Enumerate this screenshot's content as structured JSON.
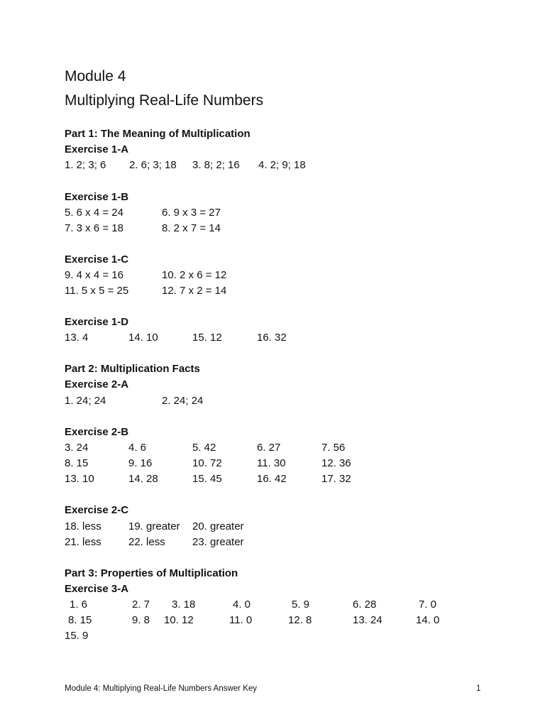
{
  "title": "Module 4",
  "subtitle": "Multiplying Real-Life Numbers",
  "sections": [
    {
      "heading": "Part 1:  The Meaning of Multiplication"
    },
    {
      "exercise": "Exercise 1-A",
      "rows": [
        [
          "1. 2; 3; 6",
          "2. 6; 3; 18",
          "3. 8; 2; 16",
          "4. 2; 9; 18"
        ]
      ]
    },
    {
      "exercise": "Exercise 1-B",
      "rows": [
        [
          "5. 6 x 4 = 24",
          "6. 9 x 3 = 27"
        ],
        [
          "7. 3 x 6 = 18",
          "8. 2 x 7 = 14"
        ]
      ]
    },
    {
      "exercise": "Exercise 1-C",
      "rows": [
        [
          "9. 4 x 4 = 16",
          "10. 2 x 6 = 12"
        ],
        [
          "11. 5 x 5 = 25",
          "12. 7 x 2 = 14"
        ]
      ]
    },
    {
      "exercise": "Exercise 1-D",
      "rows": [
        [
          "13. 4",
          "14. 10",
          "15. 12",
          "16. 32"
        ]
      ]
    },
    {
      "heading": "Part 2: Multiplication Facts"
    },
    {
      "exercise": "Exercise 2-A",
      "rows": [
        [
          "1. 24; 24",
          "2. 24; 24"
        ]
      ]
    },
    {
      "exercise": "Exercise 2-B",
      "rows": [
        [
          "3. 24",
          "4. 6",
          "5. 42",
          "6. 27",
          "7. 56"
        ],
        [
          "8. 15",
          "9. 16",
          "10. 72",
          "11. 30",
          "12. 36"
        ],
        [
          "13. 10",
          "14. 28",
          "15. 45",
          "16. 42",
          "17. 32"
        ]
      ]
    },
    {
      "exercise": "Exercise 2-C",
      "rows": [
        [
          "18. less",
          "19. greater",
          "20. greater"
        ],
        [
          "21. less",
          "22. less",
          "23. greater"
        ]
      ]
    },
    {
      "heading": "Part 3:  Properties of Multiplication"
    },
    {
      "exercise": "Exercise 3-A",
      "rows": [
        [
          "1. 6",
          "2. 7",
          "3. 18",
          "4. 0",
          "5. 9",
          "6. 28",
          "7. 0"
        ],
        [
          "8. 15",
          "9. 8",
          "10. 12",
          "11. 0",
          "12. 8",
          "13. 24",
          "14. 0"
        ],
        [
          "15.  9"
        ]
      ]
    }
  ],
  "footer": {
    "text": "Module 4:  Multiplying Real-Life Numbers Answer Key",
    "page": "1"
  }
}
